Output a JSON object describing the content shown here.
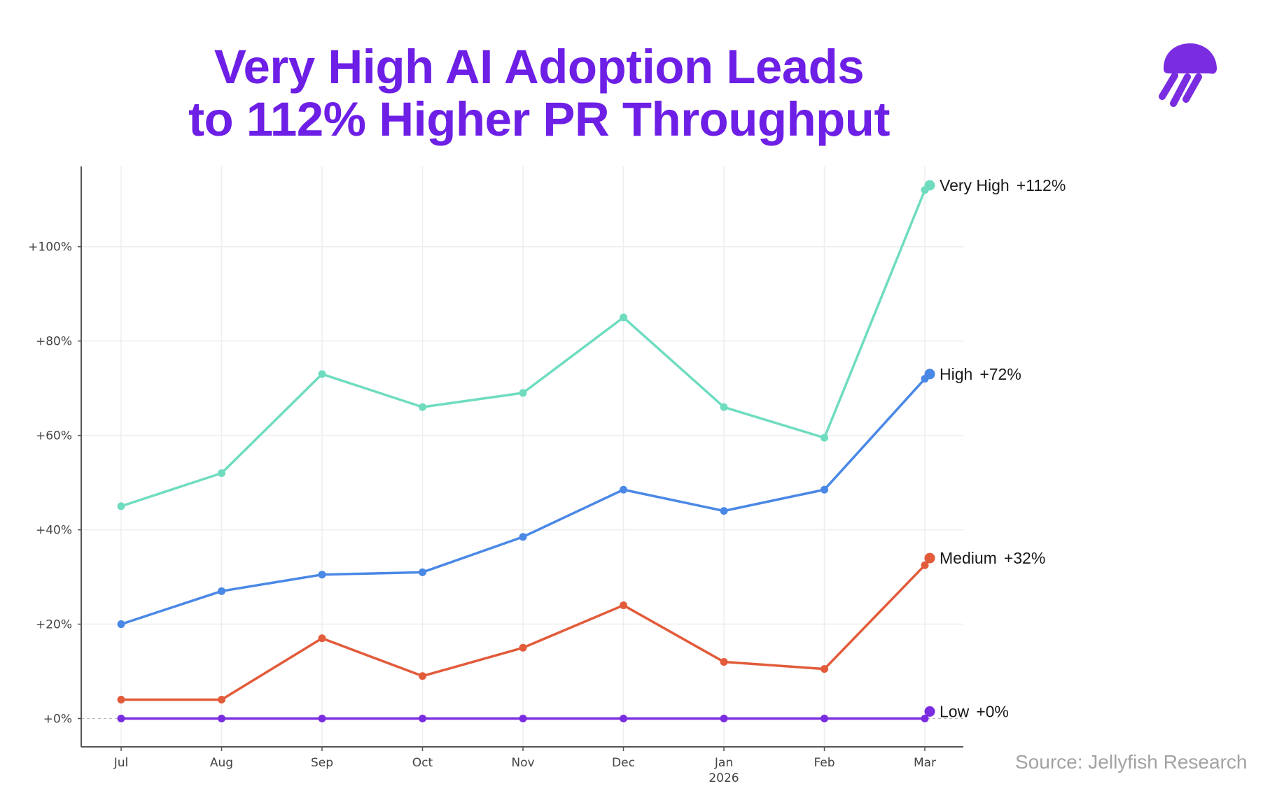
{
  "title_lines": [
    "Very High AI Adoption Leads",
    "to 112% Higher PR Throughput"
  ],
  "source": "Source: Jellyfish Research",
  "logo_icon": "jellyfish-logo-icon",
  "colors": {
    "title": "#6d1fe6",
    "very_high": "#6fdcc0",
    "high": "#4a88e6",
    "medium": "#e25b3a",
    "low": "#7a2ce0",
    "grid": "#eeeeee",
    "axis": "#555555",
    "source": "#a3a3a3"
  },
  "chart_data": {
    "type": "line",
    "categories": [
      "Jul",
      "Aug",
      "Sep",
      "Oct",
      "Nov",
      "Dec",
      "Jan",
      "Feb",
      "Mar"
    ],
    "category_sublabels": [
      "",
      "",
      "",
      "",
      "",
      "",
      "2026",
      "",
      ""
    ],
    "yticks": [
      0,
      20,
      40,
      60,
      80,
      100
    ],
    "ytick_labels": [
      "+0%",
      "+20%",
      "+40%",
      "+60%",
      "+80%",
      "+100%"
    ],
    "ylim": [
      -6,
      117
    ],
    "grid": true,
    "series": [
      {
        "name": "Very High",
        "end_label": "+112%",
        "color": "#6fdcc0",
        "values": [
          45,
          52,
          73,
          66,
          69,
          85,
          66,
          59.5,
          112
        ],
        "end_value": 113
      },
      {
        "name": "High",
        "end_label": "+72%",
        "color": "#4a88e6",
        "values": [
          20,
          27,
          30.5,
          31,
          38.5,
          48.5,
          44,
          48.5,
          72
        ],
        "end_value": 73
      },
      {
        "name": "Medium",
        "end_label": "+32%",
        "color": "#e25b3a",
        "values": [
          4,
          4,
          17,
          9,
          15,
          24,
          12,
          10.5,
          32.5
        ],
        "end_value": 34
      },
      {
        "name": "Low",
        "end_label": "+0%",
        "color": "#7a2ce0",
        "values": [
          0,
          0,
          0,
          0,
          0,
          0,
          0,
          0,
          0
        ],
        "end_value": 1.5
      }
    ]
  }
}
